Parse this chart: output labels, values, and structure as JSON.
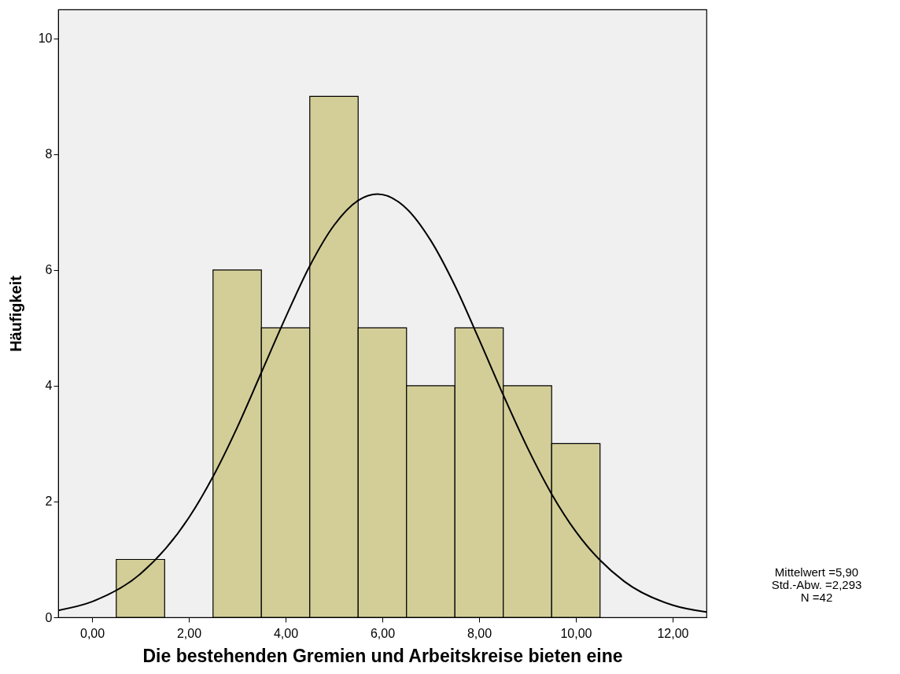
{
  "chart_data": {
    "type": "histogram",
    "xlabel": "Die bestehenden Gremien und Arbeitskreise bieten eine",
    "ylabel": "Häufigkeit",
    "bins": [
      0.5,
      1.5,
      2.5,
      3.5,
      4.5,
      5.5,
      6.5,
      7.5,
      8.5,
      9.5,
      10.5
    ],
    "values": [
      1,
      0,
      6,
      5,
      9,
      5,
      4,
      5,
      4,
      3
    ],
    "color": "#d3ce98",
    "series": [
      {
        "type": "line",
        "color": "#000000",
        "x": [
          -0.7,
          0,
          1,
          2,
          2.5,
          3,
          3.5,
          4,
          4.5,
          5,
          5.5,
          5.9,
          6.5,
          7,
          7.5,
          8,
          8.5,
          9,
          9.5,
          10,
          11,
          12,
          12.7
        ],
        "values": [
          0.12,
          0.27,
          0.75,
          1.72,
          2.43,
          3.28,
          4.23,
          5.18,
          6.07,
          6.77,
          7.2,
          7.31,
          7.06,
          6.51,
          5.73,
          4.8,
          3.84,
          2.93,
          2.13,
          1.48,
          0.62,
          0.21,
          0.09
        ]
      }
    ],
    "xlim": [
      -0.7,
      12.7
    ],
    "xticks": [
      {
        "value": 0,
        "label": "0,00"
      },
      {
        "value": 2,
        "label": "2,00"
      },
      {
        "value": 4,
        "label": "4,00"
      },
      {
        "value": 6,
        "label": "6,00"
      },
      {
        "value": 8,
        "label": "8,00"
      },
      {
        "value": 10,
        "label": "10,00"
      },
      {
        "value": 12,
        "label": "12,00"
      }
    ],
    "ylim": [
      0,
      10.5
    ],
    "yticks": [
      0,
      2,
      4,
      6,
      8,
      10
    ],
    "grid": false,
    "annotations": [
      "Mittelwert =5,90",
      "Std.-Abw. =2,293",
      "N =42"
    ]
  }
}
